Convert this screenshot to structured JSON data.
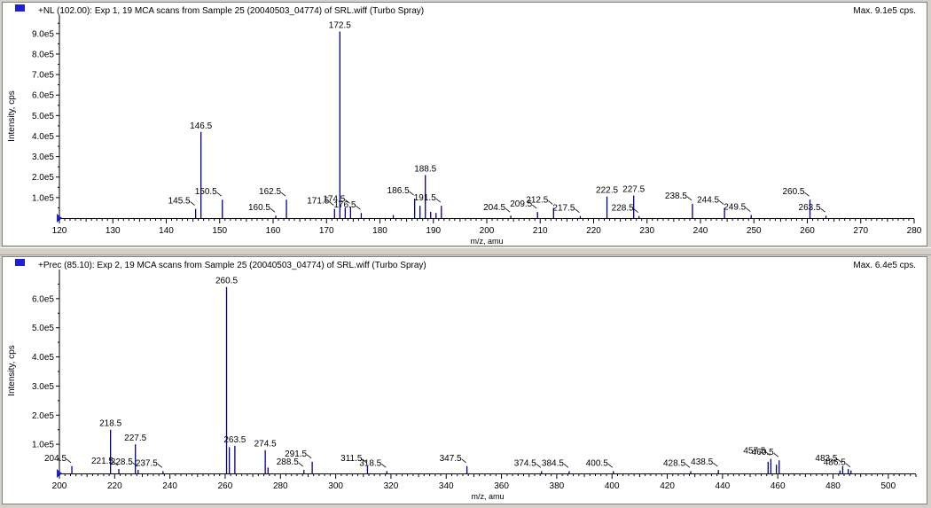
{
  "colors": {
    "peak": "#00008b",
    "axis": "#000000",
    "marker": "#1f1fd8",
    "background": "#ffffff"
  },
  "chart_data": [
    {
      "type": "bar",
      "title": "+NL (102.00): Exp 1, 19 MCA scans from Sample 25 (20040503_04774) of SRL.wiff (Turbo Spray)",
      "max_label": "Max. 9.1e5 cps.",
      "xlabel": "m/z, amu",
      "ylabel": "Intensity, cps",
      "xlim": [
        120,
        280
      ],
      "ylim": [
        0,
        990000
      ],
      "x_ticks": [
        120,
        130,
        140,
        150,
        160,
        170,
        180,
        190,
        200,
        210,
        220,
        230,
        240,
        250,
        260,
        270,
        280
      ],
      "y_ticks": [
        100000,
        200000,
        300000,
        400000,
        500000,
        600000,
        700000,
        800000,
        900000
      ],
      "y_tick_labels": [
        "1.0e5",
        "2.0e5",
        "3.0e5",
        "4.0e5",
        "5.0e5",
        "6.0e5",
        "7.0e5",
        "8.0e5",
        "9.0e5"
      ],
      "peaks": [
        {
          "x": 145.5,
          "y": 45000,
          "label": "145.5"
        },
        {
          "x": 146.5,
          "y": 420000,
          "label": "146.5"
        },
        {
          "x": 150.5,
          "y": 90000,
          "label": "150.5"
        },
        {
          "x": 160.5,
          "y": 12000,
          "label": "160.5"
        },
        {
          "x": 162.5,
          "y": 90000,
          "label": "162.5"
        },
        {
          "x": 171.5,
          "y": 45000,
          "label": "171.5"
        },
        {
          "x": 172.5,
          "y": 910000,
          "label": "172.5"
        },
        {
          "x": 173.5,
          "y": 50000,
          "label": ""
        },
        {
          "x": 174.5,
          "y": 55000,
          "label": "174.5"
        },
        {
          "x": 176.5,
          "y": 25000,
          "label": "176.5"
        },
        {
          "x": 182.5,
          "y": 15000,
          "label": ""
        },
        {
          "x": 186.5,
          "y": 95000,
          "label": "186.5"
        },
        {
          "x": 187.5,
          "y": 60000,
          "label": ""
        },
        {
          "x": 188.5,
          "y": 210000,
          "label": "188.5"
        },
        {
          "x": 189.5,
          "y": 30000,
          "label": ""
        },
        {
          "x": 190.5,
          "y": 25000,
          "label": ""
        },
        {
          "x": 191.5,
          "y": 60000,
          "label": "191.5"
        },
        {
          "x": 204.5,
          "y": 12000,
          "label": "204.5"
        },
        {
          "x": 209.5,
          "y": 30000,
          "label": "209.5"
        },
        {
          "x": 212.5,
          "y": 50000,
          "label": "212.5"
        },
        {
          "x": 217.5,
          "y": 10000,
          "label": "217.5"
        },
        {
          "x": 222.5,
          "y": 105000,
          "label": "222.5"
        },
        {
          "x": 227.5,
          "y": 110000,
          "label": "227.5"
        },
        {
          "x": 228.5,
          "y": 10000,
          "label": "228.5"
        },
        {
          "x": 238.5,
          "y": 70000,
          "label": "238.5"
        },
        {
          "x": 244.5,
          "y": 50000,
          "label": "244.5"
        },
        {
          "x": 249.5,
          "y": 15000,
          "label": "249.5"
        },
        {
          "x": 260.5,
          "y": 90000,
          "label": "260.5"
        },
        {
          "x": 263.5,
          "y": 12000,
          "label": "263.5"
        }
      ]
    },
    {
      "type": "bar",
      "title": "+Prec (85.10): Exp 2, 19 MCA scans from Sample 25 (20040503_04774) of SRL.wiff (Turbo Spray)",
      "max_label": "Max. 6.4e5 cps.",
      "xlabel": "m/z, amu",
      "ylabel": "Intensity, cps",
      "xlim": [
        200,
        510
      ],
      "ylim": [
        0,
        700000
      ],
      "x_ticks": [
        200,
        220,
        240,
        260,
        280,
        300,
        320,
        340,
        360,
        380,
        400,
        420,
        440,
        460,
        480,
        500
      ],
      "y_ticks": [
        100000,
        200000,
        300000,
        400000,
        500000,
        600000
      ],
      "y_tick_labels": [
        "1.0e5",
        "2.0e5",
        "3.0e5",
        "4.0e5",
        "5.0e5",
        "6.0e5"
      ],
      "peaks": [
        {
          "x": 204.5,
          "y": 25000,
          "label": "204.5"
        },
        {
          "x": 218.5,
          "y": 150000,
          "label": "218.5"
        },
        {
          "x": 221.5,
          "y": 15000,
          "label": "221.5"
        },
        {
          "x": 227.5,
          "y": 100000,
          "label": "227.5"
        },
        {
          "x": 228.5,
          "y": 12000,
          "label": "228.5"
        },
        {
          "x": 237.5,
          "y": 8000,
          "label": "237.5"
        },
        {
          "x": 260.5,
          "y": 640000,
          "label": "260.5"
        },
        {
          "x": 261.5,
          "y": 90000,
          "label": ""
        },
        {
          "x": 263.5,
          "y": 95000,
          "label": "263.5"
        },
        {
          "x": 274.5,
          "y": 80000,
          "label": "274.5"
        },
        {
          "x": 275.5,
          "y": 20000,
          "label": ""
        },
        {
          "x": 288.5,
          "y": 12000,
          "label": "288.5"
        },
        {
          "x": 291.5,
          "y": 40000,
          "label": "291.5"
        },
        {
          "x": 311.5,
          "y": 25000,
          "label": "311.5"
        },
        {
          "x": 318.5,
          "y": 8000,
          "label": "318.5"
        },
        {
          "x": 347.5,
          "y": 25000,
          "label": "347.5"
        },
        {
          "x": 374.5,
          "y": 8000,
          "label": "374.5"
        },
        {
          "x": 384.5,
          "y": 8000,
          "label": "384.5"
        },
        {
          "x": 400.5,
          "y": 8000,
          "label": "400.5"
        },
        {
          "x": 428.5,
          "y": 8000,
          "label": "428.5"
        },
        {
          "x": 438.5,
          "y": 12000,
          "label": "438.5"
        },
        {
          "x": 456.5,
          "y": 40000,
          "label": ""
        },
        {
          "x": 457.5,
          "y": 50000,
          "label": "457.5"
        },
        {
          "x": 459.5,
          "y": 30000,
          "label": ""
        },
        {
          "x": 460.5,
          "y": 45000,
          "label": "460.5"
        },
        {
          "x": 482.5,
          "y": 10000,
          "label": ""
        },
        {
          "x": 483.5,
          "y": 25000,
          "label": "483.5"
        },
        {
          "x": 485.5,
          "y": 15000,
          "label": ""
        },
        {
          "x": 486.5,
          "y": 10000,
          "label": "486.5"
        }
      ]
    }
  ]
}
